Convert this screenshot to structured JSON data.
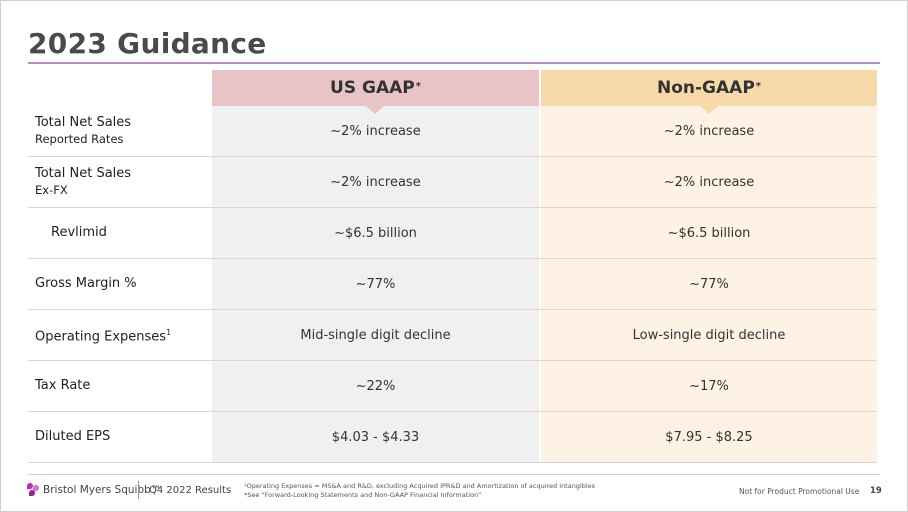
{
  "title": "2023 Guidance",
  "columns": {
    "gaap": {
      "label": "US GAAP",
      "mark": "*"
    },
    "non_gaap": {
      "label": "Non-GAAP",
      "mark": "*"
    }
  },
  "rows": [
    {
      "label": "Total Net Sales",
      "sublabel": "Reported Rates",
      "gaap": "~2% increase",
      "non_gaap": "~2% increase"
    },
    {
      "label": "Total Net Sales",
      "sublabel": "Ex-FX",
      "gaap": "~2% increase",
      "non_gaap": "~2% increase"
    },
    {
      "label": "Revlimid",
      "sublabel": "",
      "gaap": "~$6.5 billion",
      "non_gaap": "~$6.5 billion"
    },
    {
      "label": "Gross Margin %",
      "sublabel": "",
      "gaap": "~77%",
      "non_gaap": "~77%"
    },
    {
      "label": "Operating Expenses",
      "sup": "1",
      "sublabel": "",
      "gaap": "Mid-single digit decline",
      "non_gaap": "Low-single digit decline"
    },
    {
      "label": "Tax Rate",
      "sublabel": "",
      "gaap": "~22%",
      "non_gaap": "~17%"
    },
    {
      "label": "Diluted EPS",
      "sublabel": "",
      "gaap": "$4.03 - $4.33",
      "non_gaap": "$7.95 - $8.25"
    }
  ],
  "footer": {
    "logo_text": "Bristol Myers Squibb™",
    "results": "Q4 2022 Results",
    "footnote_1": "¹Operating Expenses = MS&A and R&D, excluding Acquired IPR&D and Amortization of acquired intangibles",
    "footnote_2": "*See “Forward-Looking Statements and Non-GAAP Financial Information”",
    "promo": "Not for Product Promotional Use",
    "page": "19"
  },
  "colors": {
    "title_rule": "#b58bc9",
    "gaap_header": "#e8c4c6",
    "non_gaap_header": "#f8d9a9",
    "gaap_column": "#f0f0f0",
    "non_gaap_column": "#fdf2e3",
    "brand": "#be2bbb"
  },
  "icons": [
    "bms-logo-icon"
  ]
}
